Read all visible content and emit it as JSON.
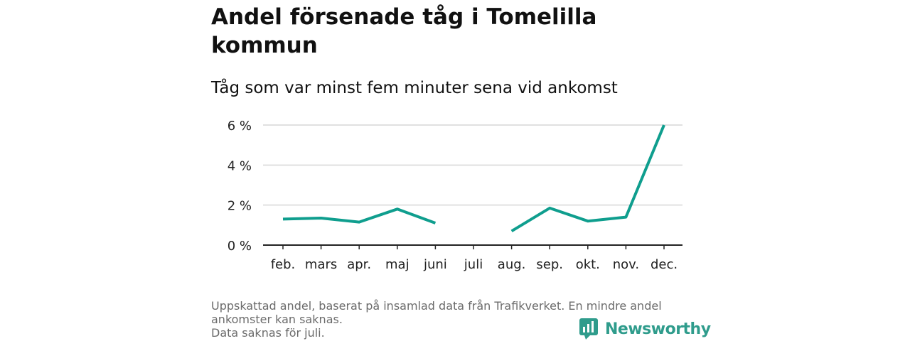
{
  "title_line1": "Andel försenade tåg i Tomelilla",
  "title_line2": "kommun",
  "subtitle": "Tåg som var minst fem minuter sena vid ankomst",
  "footnote": {
    "line1": "Uppskattad andel, baserat på insamlad data från Trafikverket. En mindre andel",
    "line2": "ankomster kan saknas.",
    "line3": "Data saknas för juli."
  },
  "brand": {
    "name": "Newsworthy",
    "color": "#2f9c8c",
    "icon": "bar-chart-speech-icon"
  },
  "chart_data": {
    "type": "line",
    "categories": [
      "feb.",
      "mars",
      "apr.",
      "maj",
      "juni",
      "juli",
      "aug.",
      "sep.",
      "okt.",
      "nov.",
      "dec."
    ],
    "series": [
      {
        "values": [
          1.3,
          1.35,
          1.15,
          1.8,
          1.1,
          null,
          0.7,
          1.85,
          1.2,
          1.4,
          6.0
        ],
        "color": "#0f9e8e"
      }
    ],
    "yticks": [
      {
        "value": 0,
        "label": "0 %"
      },
      {
        "value": 2,
        "label": "2 %"
      },
      {
        "value": 4,
        "label": "4 %"
      },
      {
        "value": 6,
        "label": "6 %"
      }
    ],
    "ylim": [
      0,
      6
    ],
    "grid": true,
    "legend": "none"
  }
}
